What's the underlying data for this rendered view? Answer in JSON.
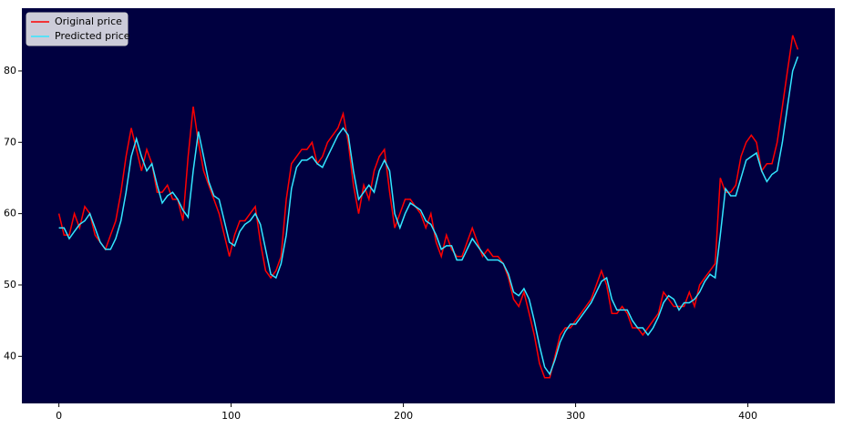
{
  "chart_data": {
    "type": "line",
    "x": [
      0,
      3,
      6,
      9,
      12,
      15,
      18,
      21,
      24,
      27,
      30,
      33,
      36,
      39,
      42,
      45,
      48,
      51,
      54,
      57,
      60,
      63,
      66,
      69,
      72,
      75,
      78,
      81,
      84,
      87,
      90,
      93,
      96,
      99,
      102,
      105,
      108,
      111,
      114,
      117,
      120,
      123,
      126,
      129,
      132,
      135,
      138,
      141,
      144,
      147,
      150,
      153,
      156,
      159,
      162,
      165,
      168,
      171,
      174,
      177,
      180,
      183,
      186,
      189,
      192,
      195,
      198,
      201,
      204,
      207,
      210,
      213,
      216,
      219,
      222,
      225,
      228,
      231,
      234,
      237,
      240,
      243,
      246,
      249,
      252,
      255,
      258,
      261,
      264,
      267,
      270,
      273,
      276,
      279,
      282,
      285,
      288,
      291,
      294,
      297,
      300,
      303,
      306,
      309,
      312,
      315,
      318,
      321,
      324,
      327,
      330,
      333,
      336,
      339,
      342,
      345,
      348,
      351,
      354,
      357,
      360,
      363,
      366,
      369,
      372,
      375,
      378,
      381,
      384,
      387,
      390,
      393,
      396,
      399,
      402,
      405,
      408,
      411,
      414,
      417,
      420,
      423,
      426,
      429
    ],
    "series": [
      {
        "name": "Original price",
        "color": "#ff0000",
        "values": [
          60,
          57,
          57,
          60,
          58,
          61,
          60,
          57,
          56,
          55,
          57,
          59,
          63,
          68,
          72,
          69,
          66,
          69,
          67,
          63,
          63,
          64,
          62,
          62,
          59,
          68,
          75,
          70,
          66,
          64,
          62,
          60,
          57,
          54,
          57,
          59,
          59,
          60,
          61,
          56,
          52,
          51,
          52,
          54,
          62,
          67,
          68,
          69,
          69,
          70,
          67,
          68,
          70,
          71,
          72,
          74,
          70,
          64,
          60,
          64,
          62,
          66,
          68,
          69,
          63,
          58,
          60,
          62,
          62,
          61,
          60,
          58,
          60,
          56,
          54,
          57,
          55,
          54,
          54,
          56,
          58,
          56,
          54,
          55,
          54,
          54,
          53,
          51,
          48,
          47,
          49,
          46,
          43,
          39,
          37,
          37,
          40,
          43,
          44,
          44,
          45,
          46,
          47,
          48,
          50,
          52,
          50,
          46,
          46,
          47,
          46,
          44,
          44,
          43,
          44,
          45,
          46,
          49,
          48,
          47,
          47,
          47,
          49,
          47,
          50,
          51,
          52,
          53,
          65,
          63,
          63,
          64,
          68,
          70,
          71,
          70,
          66,
          67,
          67,
          70,
          75,
          80,
          85,
          83
        ]
      },
      {
        "name": "Predicted price",
        "color": "#33e6ff",
        "values": [
          58,
          58,
          56.5,
          57.5,
          58.5,
          59,
          60,
          58,
          56,
          55,
          55,
          56.5,
          59,
          63,
          68,
          70.5,
          68,
          66,
          67,
          64,
          61.5,
          62.5,
          63,
          62,
          60.5,
          59.5,
          66,
          71.5,
          68,
          64.5,
          62.5,
          62,
          59,
          56,
          55.5,
          57.5,
          58.5,
          59,
          60,
          58.5,
          55,
          51.5,
          51,
          53,
          57,
          63.5,
          66.5,
          67.5,
          67.5,
          68,
          67,
          66.5,
          68,
          69.5,
          71,
          72,
          71,
          66,
          62,
          63,
          64,
          63,
          66,
          67.5,
          66,
          60,
          58,
          60,
          61.5,
          61,
          60.5,
          59,
          58.5,
          57,
          55,
          55.5,
          55.5,
          53.5,
          53.5,
          55,
          56.5,
          55.5,
          54.5,
          53.5,
          53.5,
          53.5,
          53,
          51.5,
          49,
          48.5,
          49.5,
          48,
          45,
          41.5,
          38.5,
          37.5,
          39.5,
          42,
          43.5,
          44.5,
          44.5,
          45.5,
          46.5,
          47.5,
          49,
          50.5,
          51,
          48,
          46.5,
          46.5,
          46.5,
          45,
          44,
          44,
          43,
          44,
          45.5,
          47.5,
          48.5,
          48,
          46.5,
          47.5,
          47.5,
          48,
          49,
          50.5,
          51.5,
          51,
          57,
          63.5,
          62.5,
          62.5,
          65,
          67.5,
          68,
          68.5,
          66,
          64.5,
          65.5,
          66,
          70,
          75,
          80,
          82
        ]
      }
    ],
    "xlim": [
      -21.5,
      450.5
    ],
    "ylim": [
      33.4,
      88.8
    ],
    "xticks": [
      0,
      100,
      200,
      300,
      400
    ],
    "yticks": [
      40,
      50,
      60,
      70,
      80
    ],
    "legend": "upper left",
    "background": "#000040"
  }
}
